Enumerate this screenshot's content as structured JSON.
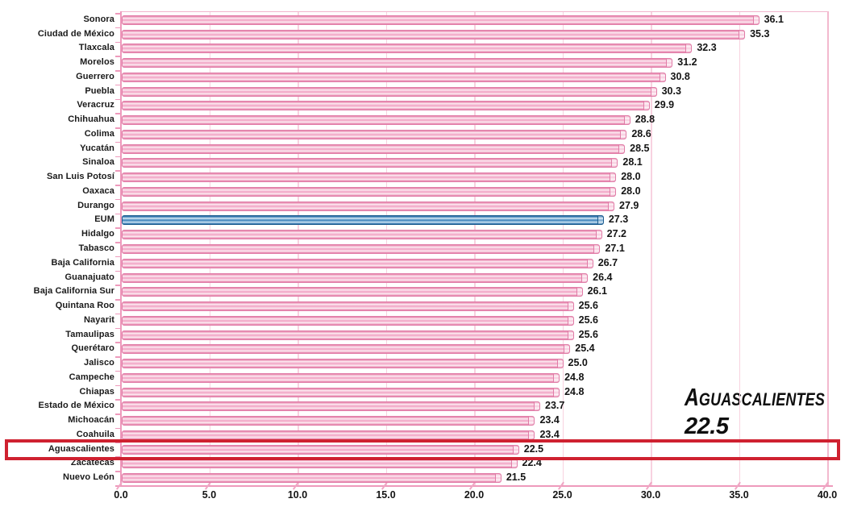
{
  "chart_data": {
    "type": "bar",
    "orientation": "horizontal",
    "title": "",
    "xlabel": "",
    "ylabel": "",
    "categories": [
      "Sonora",
      "Ciudad de México",
      "Tlaxcala",
      "Morelos",
      "Guerrero",
      "Puebla",
      "Veracruz",
      "Chihuahua",
      "Colima",
      "Yucatán",
      "Sinaloa",
      "San Luis Potosí",
      "Oaxaca",
      "Durango",
      "EUM",
      "Hidalgo",
      "Tabasco",
      "Baja California",
      "Guanajuato",
      "Baja California Sur",
      "Quintana Roo",
      "Nayarit",
      "Tamaulipas",
      "Querétaro",
      "Jalisco",
      "Campeche",
      "Chiapas",
      "Estado de México",
      "Michoacán",
      "Coahuila",
      "Aguascalientes",
      "Zacatecas",
      "Nuevo León"
    ],
    "values": [
      36.1,
      35.3,
      32.3,
      31.2,
      30.8,
      30.3,
      29.9,
      28.8,
      28.6,
      28.5,
      28.1,
      28.0,
      28.0,
      27.9,
      27.3,
      27.2,
      27.1,
      26.7,
      26.4,
      26.1,
      25.6,
      25.6,
      25.6,
      25.4,
      25.0,
      24.8,
      24.8,
      23.7,
      23.4,
      23.4,
      22.5,
      22.4,
      21.5
    ],
    "value_labels": [
      "36.1",
      "35.3",
      "32.3",
      "31.2",
      "30.8",
      "30.3",
      "29.9",
      "28.8",
      "28.6",
      "28.5",
      "28.1",
      "28.0",
      "28.0",
      "27.9",
      "27.3",
      "27.2",
      "27.1",
      "26.7",
      "26.4",
      "26.1",
      "25.6",
      "25.6",
      "25.6",
      "25.4",
      "25.0",
      "24.8",
      "24.8",
      "23.7",
      "23.4",
      "23.4",
      "22.5",
      "22.4",
      "21.5"
    ],
    "highlighted_category": "EUM",
    "boxed_category": "Aguascalientes",
    "x_ticks": [
      "0.0",
      "5.0",
      "10.0",
      "15.0",
      "20.0",
      "25.0",
      "30.0",
      "35.0",
      "40.0"
    ],
    "xlim": [
      0,
      40
    ],
    "grid": true,
    "legend": "none",
    "colors": {
      "bar": "#f1a5c5",
      "bar_edge": "#e07ca7",
      "highlight_bar": "#2e75ae",
      "highlight_bar_edge": "#1d5c8e",
      "gridline": "#f8d2e0",
      "axis": "#ee9abc",
      "box": "#cf2130",
      "text": "#141414"
    }
  },
  "annotation": {
    "label": "Aguascalientes",
    "value": "22.5"
  }
}
